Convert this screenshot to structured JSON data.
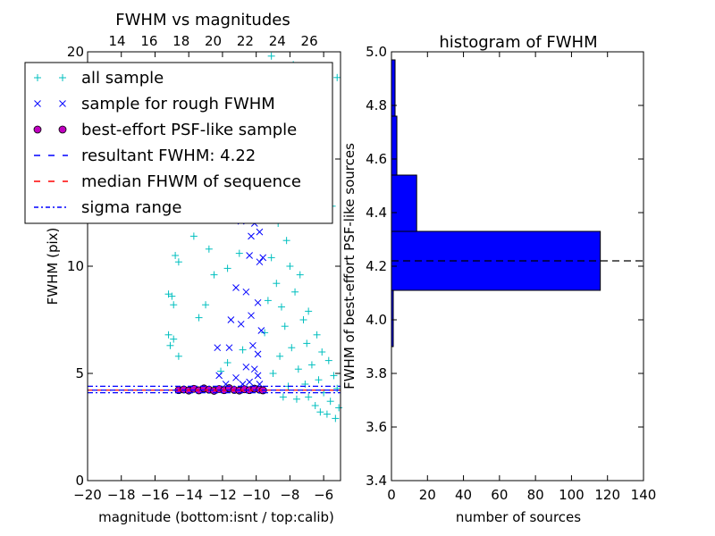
{
  "chart_data": [
    {
      "type": "scatter",
      "title": "FWHM vs magnitudes",
      "xlabel": "magnitude (bottom:isnt / top:calib)",
      "ylabel": "FWHM (pix)",
      "xlim": [
        -20,
        -5
      ],
      "ylim": [
        0,
        20
      ],
      "x_ticks": [
        -20,
        -18,
        -16,
        -14,
        -12,
        -10,
        -8,
        -6
      ],
      "x_tick_labels": [
        "−20",
        "−18",
        "−16",
        "−14",
        "−12",
        "−10",
        "−8",
        "−6"
      ],
      "y_ticks": [
        0,
        5,
        10,
        15,
        20
      ],
      "y_tick_labels": [
        "0",
        "5",
        "10",
        "",
        "20"
      ],
      "top_axis": {
        "ticks": [
          14,
          16,
          18,
          20,
          22,
          24,
          26
        ],
        "tick_labels": [
          "14",
          "16",
          "18",
          "20",
          "22",
          "24",
          "26"
        ],
        "bottom_equiv_of_14": -18.25,
        "per_unit": 0.95
      },
      "grid": false,
      "legend_position": "top-left",
      "legend": [
        {
          "label": "all sample",
          "marker": "+",
          "color": "#00bfbf"
        },
        {
          "label": "sample for rough FWHM",
          "marker": "x",
          "color": "#0000ff"
        },
        {
          "label": "best-effort PSF-like sample",
          "marker": "o",
          "color": "#bf00bf"
        },
        {
          "label": "resultant FWHM: 4.22",
          "marker": "dashed",
          "color": "#0000ff"
        },
        {
          "label": "median FHWM of sequence",
          "marker": "dashed",
          "color": "#ff0000"
        },
        {
          "label": "sigma range",
          "marker": "dashdot",
          "color": "#0000ff"
        }
      ],
      "reference_lines": {
        "resultant_fwhm": 4.22,
        "median_fwhm": 4.22,
        "sigma_range": [
          4.1,
          4.4
        ]
      },
      "series": [
        {
          "name": "all sample",
          "marker": "+",
          "color": "#00bfbf",
          "points": [
            [
              -13.5,
              19.2
            ],
            [
              -11.3,
              17.5
            ],
            [
              -10.2,
              13.2
            ],
            [
              -9.1,
              19.8
            ],
            [
              -7.8,
              19.4
            ],
            [
              -5.2,
              18.8
            ],
            [
              -7.5,
              16.2
            ],
            [
              -6.8,
              14.5
            ],
            [
              -5.5,
              12.8
            ],
            [
              -13.7,
              11.4
            ],
            [
              -12.8,
              10.8
            ],
            [
              -12.5,
              9.6
            ],
            [
              -11.7,
              9.9
            ],
            [
              -14.8,
              10.5
            ],
            [
              -14.6,
              10.2
            ],
            [
              -15.2,
              8.7
            ],
            [
              -15.0,
              8.6
            ],
            [
              -14.9,
              8.2
            ],
            [
              -15.2,
              6.8
            ],
            [
              -14.9,
              6.6
            ],
            [
              -15.1,
              6.3
            ],
            [
              -14.6,
              5.8
            ],
            [
              -11.7,
              5.5
            ],
            [
              -12.1,
              5.1
            ],
            [
              -10.8,
              6.1
            ],
            [
              -13.4,
              7.6
            ],
            [
              -13.0,
              8.2
            ],
            [
              -12.4,
              12.2
            ],
            [
              -11.0,
              10.6
            ],
            [
              -8.6,
              15.2
            ],
            [
              -8.1,
              14.8
            ],
            [
              -8.4,
              13.5
            ],
            [
              -7.9,
              12.6
            ],
            [
              -8.7,
              12.0
            ],
            [
              -8.2,
              11.2
            ],
            [
              -9.1,
              10.4
            ],
            [
              -8.0,
              10.0
            ],
            [
              -7.4,
              9.6
            ],
            [
              -8.8,
              9.2
            ],
            [
              -7.7,
              8.8
            ],
            [
              -9.3,
              8.4
            ],
            [
              -8.5,
              8.1
            ],
            [
              -6.9,
              7.9
            ],
            [
              -7.2,
              7.5
            ],
            [
              -8.3,
              7.2
            ],
            [
              -9.5,
              6.9
            ],
            [
              -6.4,
              6.8
            ],
            [
              -7.0,
              6.4
            ],
            [
              -7.9,
              6.2
            ],
            [
              -6.1,
              6.0
            ],
            [
              -8.6,
              5.8
            ],
            [
              -5.7,
              5.6
            ],
            [
              -6.7,
              5.4
            ],
            [
              -7.5,
              5.2
            ],
            [
              -9.0,
              5.0
            ],
            [
              -5.4,
              4.9
            ],
            [
              -6.3,
              4.7
            ],
            [
              -7.1,
              4.5
            ],
            [
              -8.1,
              4.4
            ],
            [
              -5.2,
              4.3
            ],
            [
              -6.0,
              4.1
            ],
            [
              -6.9,
              3.9
            ],
            [
              -5.6,
              3.7
            ],
            [
              -6.5,
              3.5
            ],
            [
              -5.1,
              3.4
            ],
            [
              -7.6,
              3.8
            ],
            [
              -8.4,
              3.9
            ],
            [
              -5.8,
              3.1
            ],
            [
              -5.3,
              2.9
            ],
            [
              -6.2,
              3.2
            ]
          ]
        },
        {
          "name": "sample for rough FWHM",
          "marker": "x",
          "color": "#0000ff",
          "points": [
            [
              -11.6,
              12.3
            ],
            [
              -10.9,
              12.1
            ],
            [
              -10.3,
              11.4
            ],
            [
              -10.1,
              12.0
            ],
            [
              -9.8,
              11.6
            ],
            [
              -9.7,
              12.8
            ],
            [
              -10.4,
              10.5
            ],
            [
              -9.8,
              10.2
            ],
            [
              -9.6,
              10.4
            ],
            [
              -11.2,
              9.0
            ],
            [
              -10.6,
              8.8
            ],
            [
              -9.9,
              8.3
            ],
            [
              -11.5,
              7.5
            ],
            [
              -10.9,
              7.3
            ],
            [
              -10.3,
              7.7
            ],
            [
              -9.7,
              7.0
            ],
            [
              -12.3,
              6.2
            ],
            [
              -11.6,
              6.2
            ],
            [
              -10.2,
              6.3
            ],
            [
              -9.9,
              5.9
            ],
            [
              -10.6,
              5.3
            ],
            [
              -10.1,
              5.2
            ],
            [
              -9.9,
              4.9
            ],
            [
              -12.2,
              4.9
            ],
            [
              -11.2,
              4.8
            ],
            [
              -10.4,
              4.6
            ],
            [
              -9.8,
              4.5
            ],
            [
              -11.8,
              4.5
            ],
            [
              -10.8,
              4.5
            ]
          ]
        },
        {
          "name": "best-effort PSF-like sample",
          "marker": "o",
          "color": "#bf00bf",
          "points": [
            [
              -14.6,
              4.22
            ],
            [
              -14.3,
              4.25
            ],
            [
              -14.0,
              4.2
            ],
            [
              -13.7,
              4.28
            ],
            [
              -13.4,
              4.21
            ],
            [
              -13.1,
              4.3
            ],
            [
              -12.8,
              4.24
            ],
            [
              -12.5,
              4.19
            ],
            [
              -12.2,
              4.27
            ],
            [
              -11.9,
              4.22
            ],
            [
              -11.6,
              4.31
            ],
            [
              -11.3,
              4.23
            ],
            [
              -11.0,
              4.2
            ],
            [
              -10.7,
              4.26
            ],
            [
              -10.4,
              4.22
            ],
            [
              -10.1,
              4.29
            ],
            [
              -9.8,
              4.24
            ],
            [
              -9.6,
              4.21
            ]
          ]
        }
      ]
    },
    {
      "type": "bar",
      "orientation": "horizontal",
      "title": "histogram of FWHM",
      "xlabel": "number of sources",
      "ylabel": "FWHM of best-effort PSF-like sources",
      "xlim": [
        0,
        140
      ],
      "ylim": [
        3.4,
        5.0
      ],
      "x_ticks": [
        0,
        20,
        40,
        60,
        80,
        100,
        120,
        140
      ],
      "x_tick_labels": [
        "0",
        "20",
        "40",
        "60",
        "80",
        "100",
        "120",
        "140"
      ],
      "y_ticks": [
        3.4,
        3.6,
        3.8,
        4.0,
        4.2,
        4.4,
        4.6,
        4.8,
        5.0
      ],
      "y_tick_labels": [
        "3.4",
        "3.6",
        "3.8",
        "4.0",
        "4.2",
        "4.4",
        "4.6",
        "4.8",
        "5.0"
      ],
      "bar_color": "#0000ff",
      "bins": [
        {
          "from": 3.9,
          "to": 4.11,
          "count": 1
        },
        {
          "from": 4.11,
          "to": 4.33,
          "count": 116
        },
        {
          "from": 4.33,
          "to": 4.54,
          "count": 14
        },
        {
          "from": 4.54,
          "to": 4.76,
          "count": 3
        },
        {
          "from": 4.76,
          "to": 4.97,
          "count": 2
        }
      ],
      "reference_line": 4.22
    }
  ]
}
